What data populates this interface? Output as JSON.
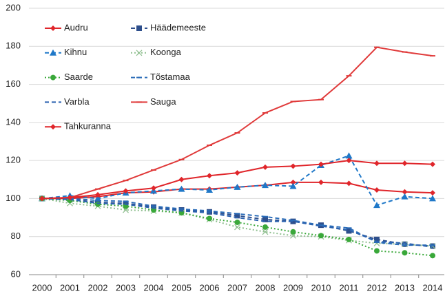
{
  "chart_data": {
    "type": "line",
    "categories": [
      "2000",
      "2001",
      "2002",
      "2003",
      "2004",
      "2005",
      "2006",
      "2007",
      "2008",
      "2009",
      "2010",
      "2011",
      "2012",
      "2013",
      "2014"
    ],
    "ylim": [
      60,
      200
    ],
    "yticks": [
      60,
      80,
      100,
      120,
      140,
      160,
      180,
      200
    ],
    "grid": true,
    "legend": "top-left",
    "series": [
      {
        "name": "Audru",
        "color": "#e0262b",
        "dash": "solid",
        "marker": "diamond",
        "values": [
          100,
          100,
          101,
          103,
          103.5,
          105,
          105,
          106,
          107,
          108.5,
          108.5,
          108,
          104.5,
          103.5,
          103
        ]
      },
      {
        "name": "Häädemeeste",
        "color": "#2e4f8c",
        "dash": "dashed",
        "marker": "square",
        "values": [
          100,
          99.5,
          98,
          97.5,
          95.5,
          94,
          93,
          91,
          89,
          88,
          86,
          83,
          78.5,
          76,
          75
        ]
      },
      {
        "name": "Kihnu",
        "color": "#1f78c8",
        "dash": "dashed",
        "marker": "triangle",
        "values": [
          100,
          101.5,
          100,
          103,
          104,
          105,
          104.5,
          106,
          107,
          106.5,
          117.5,
          122.5,
          96.5,
          101,
          100
        ]
      },
      {
        "name": "Koonga",
        "color": "#8fbf8f",
        "dash": "dotted",
        "marker": "x",
        "values": [
          100,
          97.5,
          96,
          94,
          93.5,
          92.5,
          89,
          85,
          82.5,
          80.5,
          80,
          78,
          76.5,
          76,
          75
        ]
      },
      {
        "name": "Saarde",
        "color": "#3aa83a",
        "dash": "dotted",
        "marker": "circle",
        "values": [
          100,
          99,
          97,
          96,
          94,
          92.5,
          89.5,
          87.5,
          85,
          82.5,
          80.5,
          78.5,
          72.5,
          71.5,
          70
        ]
      },
      {
        "name": "Tõstamaa",
        "color": "#2a6cb8",
        "dash": "dashed",
        "marker": "dash",
        "values": [
          100,
          100,
          99,
          98.5,
          96,
          94.5,
          93.5,
          92,
          90.5,
          88.5,
          86,
          84.5,
          77,
          75.5,
          75.5
        ]
      },
      {
        "name": "Varbla",
        "color": "#2a62b0",
        "dash": "dashed",
        "marker": "none",
        "values": [
          100,
          99.5,
          97.5,
          97,
          95,
          93.5,
          92.5,
          90,
          88,
          88,
          85.5,
          83.5,
          77.5,
          76.5,
          74.5
        ]
      },
      {
        "name": "Sauga",
        "color": "#e03a3a",
        "dash": "solid",
        "marker": "dash",
        "values": [
          100,
          100.5,
          105,
          109.5,
          115,
          120.5,
          128,
          134.5,
          145,
          151,
          152,
          164.5,
          179.5,
          177,
          175
        ]
      },
      {
        "name": "Tahkuranna",
        "color": "#e0262b",
        "dash": "solid",
        "marker": "diamond",
        "values": [
          100,
          100.5,
          102,
          104,
          105.5,
          110,
          112,
          113.5,
          116.5,
          117,
          118,
          120,
          118.5,
          118.5,
          118
        ]
      }
    ]
  }
}
